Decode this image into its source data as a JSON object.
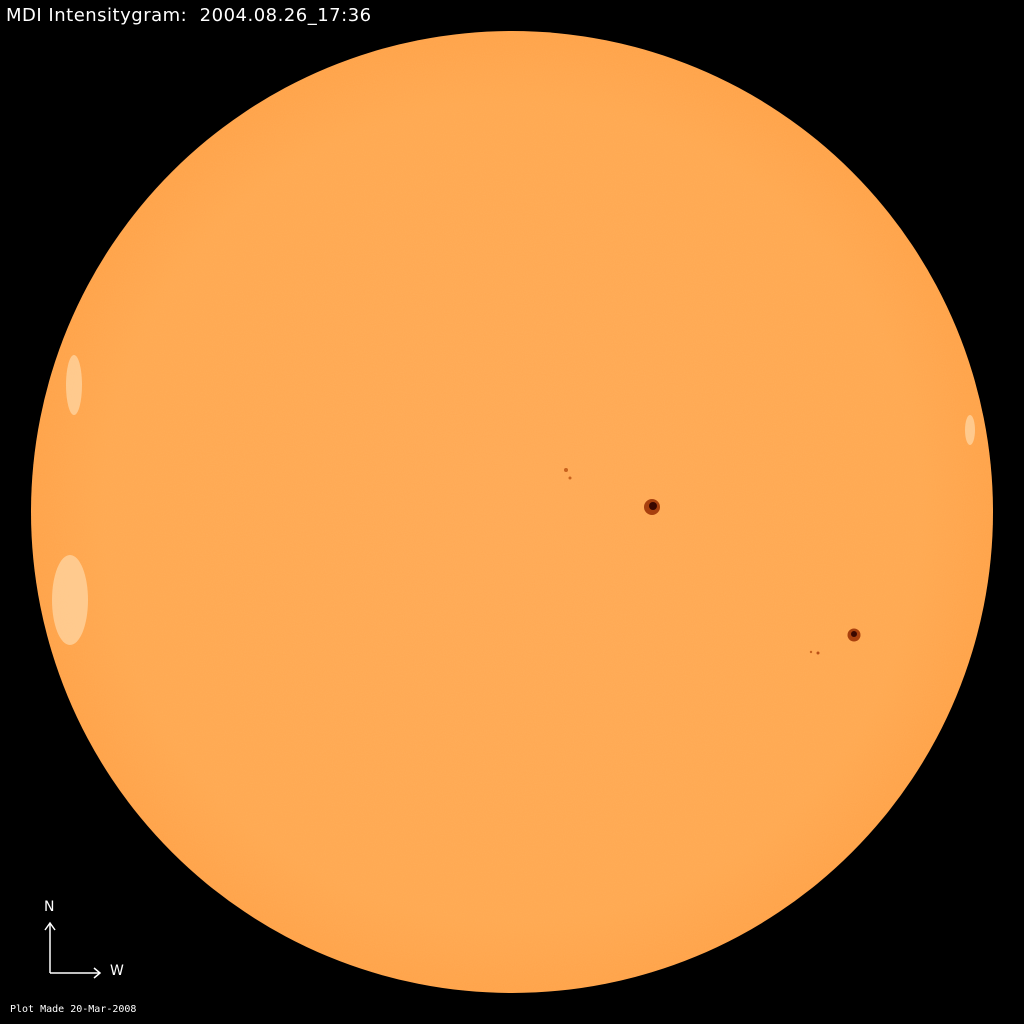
{
  "title": "MDI Intensitygram:  2004.08.26_17:36",
  "compass": {
    "north": "N",
    "west": "W"
  },
  "footer": "Plot Made 20-Mar-2008",
  "colors": {
    "disk": "#FFA850",
    "sunspot": "#8A2A05",
    "umbra": "#3A0800",
    "background": "#000000"
  }
}
